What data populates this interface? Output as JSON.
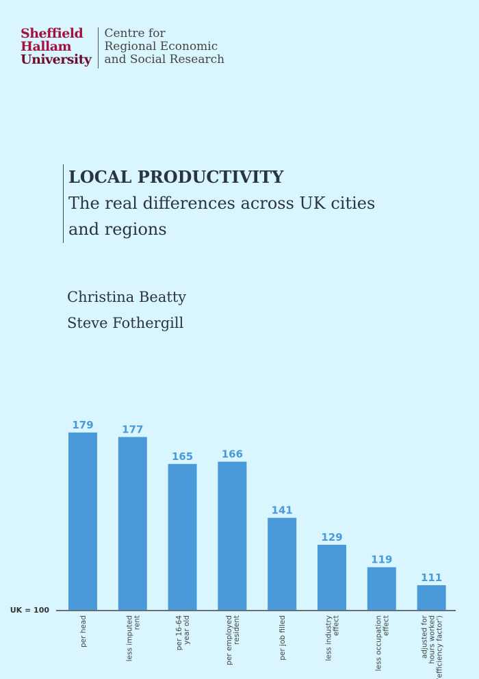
{
  "logo": {
    "university_lines": [
      "Sheffield",
      "Hallam",
      "University"
    ],
    "centre_lines": [
      "Centre for",
      "Regional Economic",
      "and Social Research"
    ]
  },
  "title": {
    "line1": "LOCAL PRODUCTIVITY",
    "line2": "The real differences across UK cities",
    "line3": "and regions"
  },
  "authors": [
    "Christina Beatty",
    "Steve Fothergill"
  ],
  "chart_data": {
    "type": "bar",
    "baseline_label": "UK = 100",
    "baseline": 100,
    "categories": [
      [
        "per head"
      ],
      [
        "less imputed",
        "rent"
      ],
      [
        "per 16-64",
        "year old"
      ],
      [
        "per employed",
        "resident"
      ],
      [
        "per job filled"
      ],
      [
        "less industry",
        "effect"
      ],
      [
        "less occupation",
        "effect"
      ],
      [
        "adjusted for",
        "hours worked",
        "('efficiency factor')"
      ]
    ],
    "values": [
      179,
      177,
      165,
      166,
      141,
      129,
      119,
      111
    ],
    "ylim": [
      100,
      180
    ],
    "bar_color": "#4a9ad9"
  }
}
